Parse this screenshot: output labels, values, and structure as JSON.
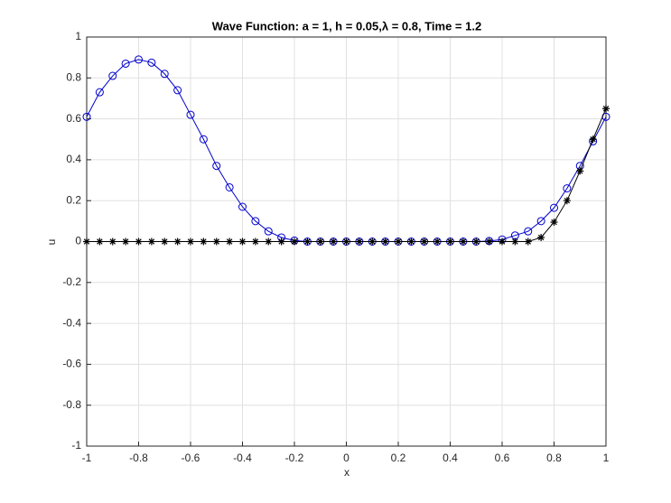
{
  "chart_data": {
    "type": "line",
    "title": "Wave Function: a = 1, h = 0.05,λ = 0.8, Time = 1.2",
    "x_label": "x",
    "y_label": "u",
    "x": [
      -1,
      -0.95,
      -0.9,
      -0.85,
      -0.8,
      -0.75,
      -0.7,
      -0.65,
      -0.6,
      -0.55,
      -0.5,
      -0.45,
      -0.4,
      -0.35,
      -0.3,
      -0.25,
      -0.2,
      -0.15,
      -0.1,
      -0.05,
      0,
      0.05,
      0.1,
      0.15,
      0.2,
      0.25,
      0.3,
      0.35,
      0.4,
      0.45,
      0.5,
      0.55,
      0.6,
      0.65,
      0.7,
      0.75,
      0.8,
      0.85,
      0.9,
      0.95,
      1
    ],
    "series": [
      {
        "color": "#0000cc",
        "marker": "circle",
        "values": [
          0.61,
          0.73,
          0.81,
          0.87,
          0.89,
          0.875,
          0.82,
          0.74,
          0.62,
          0.5,
          0.37,
          0.265,
          0.17,
          0.1,
          0.05,
          0.02,
          0.005,
          0,
          0,
          0,
          0,
          0,
          0,
          0,
          0,
          0,
          0,
          0,
          0,
          0,
          0,
          0.003,
          0.01,
          0.03,
          0.05,
          0.1,
          0.165,
          0.26,
          0.37,
          0.49,
          0.61
        ]
      },
      {
        "color": "#000000",
        "marker": "asterisk",
        "values": [
          0,
          0,
          0,
          0,
          0,
          0,
          0,
          0,
          0,
          0,
          0,
          0,
          0,
          0,
          0,
          0,
          0,
          0,
          0,
          0,
          0,
          0,
          0,
          0,
          0,
          0,
          0,
          0,
          0,
          0,
          0,
          0,
          0,
          0,
          0,
          0.02,
          0.095,
          0.2,
          0.345,
          0.5,
          0.65
        ]
      }
    ],
    "xlim": [
      -1,
      1
    ],
    "ylim": [
      -1,
      1
    ],
    "xticks": [
      -1,
      -0.8,
      -0.6,
      -0.4,
      -0.2,
      0,
      0.2,
      0.4,
      0.6,
      0.8,
      1
    ],
    "yticks": [
      -1,
      -0.8,
      -0.6,
      -0.4,
      -0.2,
      0,
      0.2,
      0.4,
      0.6,
      0.8,
      1
    ],
    "grid": true
  }
}
